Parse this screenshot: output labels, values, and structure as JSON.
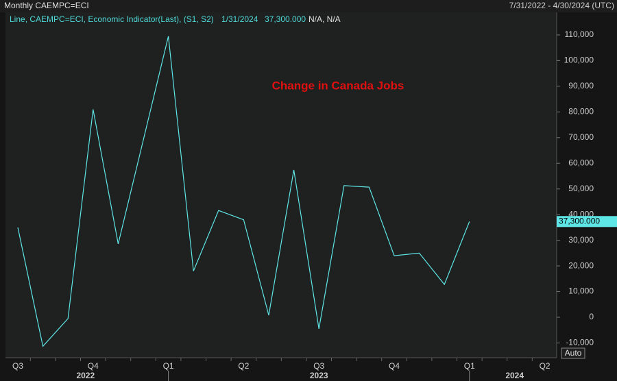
{
  "chart_data": {
    "type": "line",
    "title": "Monthly CAEMPC=ECI",
    "date_range": "7/31/2022 - 4/30/2024 (UTC)",
    "legend": {
      "text": "Line, CAEMPC=ECI, Economic Indicator(Last), (S1, S2)",
      "date": "1/31/2024",
      "value": "37,300.000",
      "extra": "N/A, N/A"
    },
    "annotation": "Change in Canada Jobs",
    "last_value_label": "37,300.000",
    "button": "Auto",
    "quarter_labels": [
      "Q3",
      "Q4",
      "Q1",
      "Q2",
      "Q3",
      "Q4",
      "Q1",
      "Q2"
    ],
    "year_labels": [
      "2022",
      "2023",
      "2024"
    ],
    "series": [
      {
        "name": "CAEMPC=ECI",
        "color": "#5ee6e6",
        "values": [
          35000,
          -11300,
          -500,
          81000,
          28600,
          69000,
          109500,
          18000,
          41600,
          38000,
          800,
          57400,
          -4500,
          51300,
          50700,
          24000,
          25000,
          12800,
          37300
        ]
      }
    ],
    "ylim": [
      -15750,
      118800
    ],
    "yticks": [
      {
        "value": -10000,
        "label": "-10,000"
      },
      0,
      {
        "value": 10000,
        "label": "10,000"
      },
      {
        "value": 20000,
        "label": "20,000"
      },
      {
        "value": 30000,
        "label": "30,000"
      },
      {
        "value": 40000,
        "label": "40,000"
      },
      {
        "value": 50000,
        "label": "50,000"
      },
      {
        "value": 60000,
        "label": "60,000"
      },
      {
        "value": 70000,
        "label": "70,000"
      },
      {
        "value": 80000,
        "label": "80,000"
      },
      {
        "value": 90000,
        "label": "90,000"
      },
      {
        "value": 100000,
        "label": "100,000"
      },
      {
        "value": 110000,
        "label": "110,000"
      }
    ]
  }
}
